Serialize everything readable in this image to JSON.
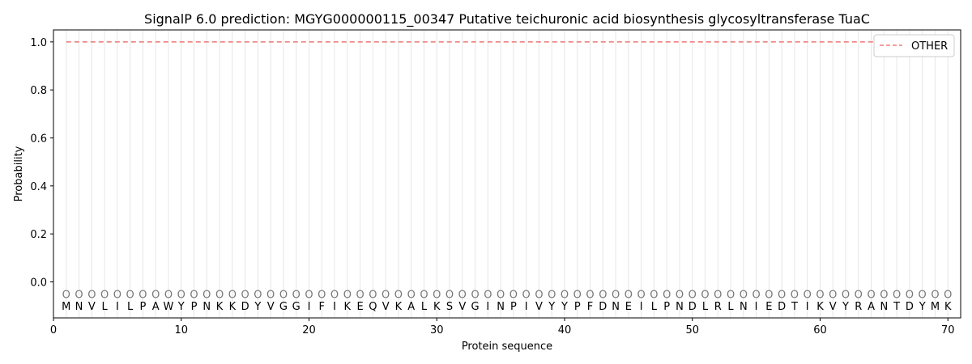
{
  "chart_data": {
    "type": "line",
    "title": "SignalP 6.0 prediction: MGYG000000115_00347 Putative teichuronic acid biosynthesis glycosyltransferase TuaC",
    "xlabel": "Protein sequence",
    "ylabel": "Probability",
    "xlim": [
      0,
      71
    ],
    "ylim": [
      -0.15,
      1.05
    ],
    "xticks": [
      0,
      10,
      20,
      30,
      40,
      50,
      60,
      70
    ],
    "yticks": [
      0.0,
      0.2,
      0.4,
      0.6,
      0.8,
      1.0
    ],
    "ytick_labels": [
      "0.0",
      "0.2",
      "0.4",
      "0.6",
      "0.8",
      "1.0"
    ],
    "grid": "vertical lines at each residue",
    "legend_position": "top-right",
    "sequence": [
      "M",
      "N",
      "V",
      "L",
      "I",
      "L",
      "P",
      "A",
      "W",
      "Y",
      "P",
      "N",
      "K",
      "K",
      "D",
      "Y",
      "V",
      "G",
      "G",
      "I",
      "F",
      "I",
      "K",
      "E",
      "Q",
      "V",
      "K",
      "A",
      "L",
      "K",
      "S",
      "V",
      "G",
      "I",
      "N",
      "P",
      "I",
      "V",
      "Y",
      "Y",
      "P",
      "F",
      "D",
      "N",
      "E",
      "I",
      "L",
      "P",
      "N",
      "D",
      "L",
      "R",
      "L",
      "N",
      "I",
      "E",
      "D",
      "T",
      "I",
      "K",
      "V",
      "Y",
      "R",
      "A",
      "N",
      "T",
      "D",
      "Y",
      "M",
      "K"
    ],
    "annotation_label": "O",
    "series": [
      {
        "name": "OTHER",
        "color": "#ef7f7f",
        "style": "dashed",
        "x_start": 1,
        "x_end": 70,
        "value": 1.0
      }
    ]
  }
}
